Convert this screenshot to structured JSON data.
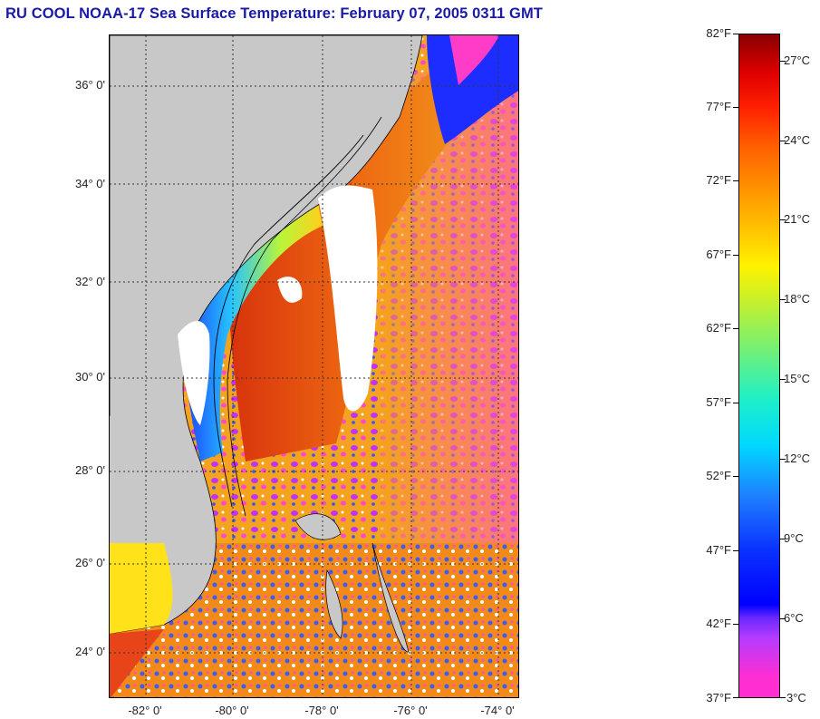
{
  "title": "RU COOL  NOAA-17  Sea Surface Temperature:  February 07, 2005 0311 GMT",
  "map": {
    "lat_labels": [
      "36° 0'",
      "34° 0'",
      "32° 0'",
      "30° 0'",
      "28° 0'",
      "26° 0'",
      "24° 0'"
    ],
    "lon_labels": [
      "-82° 0'",
      "-80° 0'",
      "-78° 0'",
      "-76° 0'",
      "-74° 0'"
    ],
    "colors": {
      "land": "#c8c8c8",
      "cloud": "#ffffff",
      "warm_ocean": "#f08a1a",
      "gulf_stream": "#e34a0e",
      "cold_shelf": "#1a3cff",
      "cool_shelf": "#ffe01a",
      "magenta": "#ff3cc8",
      "purple": "#9a3cff",
      "contour": "#000000",
      "grid": "#333333"
    }
  },
  "colorbar": {
    "f_labels": [
      "82°F",
      "77°F",
      "72°F",
      "67°F",
      "62°F",
      "57°F",
      "52°F",
      "47°F",
      "42°F",
      "37°F"
    ],
    "c_labels": [
      "27°C",
      "24°C",
      "21°C",
      "18°C",
      "15°C",
      "12°C",
      "9°C",
      "6°C",
      "3°C"
    ],
    "range_f": [
      37,
      82
    ],
    "range_c": [
      3,
      27.8
    ]
  }
}
